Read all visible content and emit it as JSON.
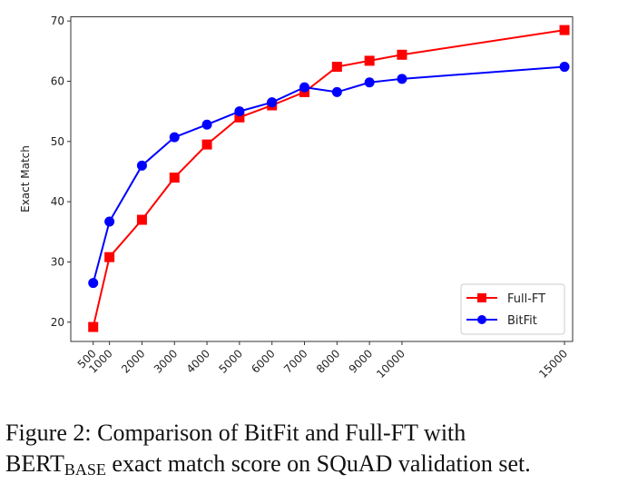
{
  "chart_data": {
    "type": "line",
    "title": "",
    "xlabel": "",
    "ylabel": "Exact Match",
    "x": [
      500,
      1000,
      2000,
      3000,
      4000,
      5000,
      6000,
      7000,
      8000,
      9000,
      10000,
      15000
    ],
    "xticks": [
      "500",
      "1000",
      "2000",
      "3000",
      "4000",
      "5000",
      "6000",
      "7000",
      "8000",
      "9000",
      "10000",
      "15000"
    ],
    "yticks": [
      20,
      30,
      40,
      50,
      60,
      70
    ],
    "xlim": [
      -190,
      15250
    ],
    "ylim": [
      16.8,
      70.7
    ],
    "grid": false,
    "legend_position": "lower-right",
    "series": [
      {
        "name": "Full-FT",
        "color": "#ff0000",
        "marker": "square",
        "values": [
          19.2,
          30.8,
          37.0,
          44.0,
          49.5,
          54.0,
          56.0,
          58.2,
          62.4,
          63.4,
          64.4,
          68.5
        ]
      },
      {
        "name": "BitFit",
        "color": "#0000ff",
        "marker": "circle",
        "values": [
          26.5,
          36.7,
          46.0,
          50.7,
          52.8,
          55.0,
          56.5,
          59.0,
          58.2,
          59.8,
          60.4,
          62.4
        ]
      }
    ]
  },
  "caption": {
    "line1": "Figure 2:  Comparison of BitFit and Full-FT with",
    "bert": "BERT",
    "base": "BASE",
    "rest": " exact match score on SQuAD validation set."
  }
}
